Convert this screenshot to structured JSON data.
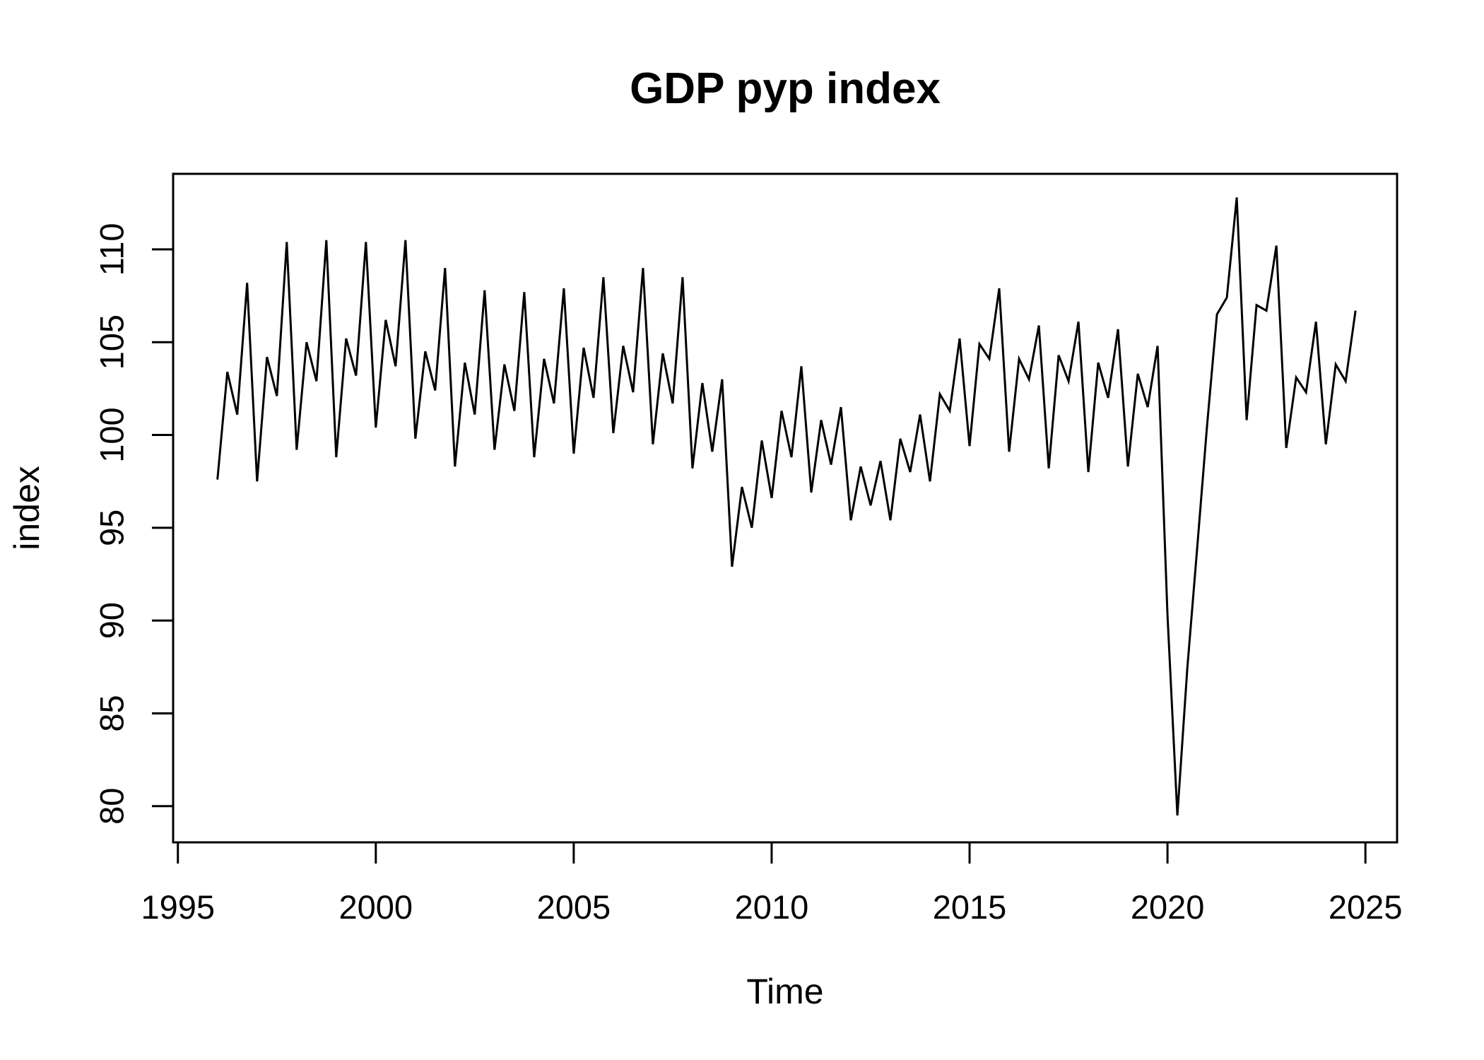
{
  "page": {
    "background": "#ffffff",
    "foreground": "#000000"
  },
  "chart_data": {
    "type": "line",
    "title": "GDP pyp index",
    "xlabel": "Time",
    "ylabel": "index",
    "grid": false,
    "legend": "none",
    "line_color": "#000000",
    "xlim": [
      1994.88,
      2025.8
    ],
    "ylim": [
      78.05,
      114.07
    ],
    "x_ticks": [
      1995,
      2000,
      2005,
      2010,
      2015,
      2020,
      2025
    ],
    "y_ticks": [
      80,
      85,
      90,
      95,
      100,
      105,
      110
    ],
    "series": [
      {
        "name": "GDP pyp index",
        "color": "#000000",
        "start_year": 1996,
        "frequency": 4,
        "values": [
          97.6,
          103.4,
          101.1,
          108.2,
          97.5,
          104.2,
          102.1,
          110.4,
          99.2,
          105.0,
          102.9,
          110.5,
          98.8,
          105.2,
          103.2,
          110.4,
          100.4,
          106.2,
          103.7,
          110.5,
          99.8,
          104.5,
          102.4,
          109.0,
          98.3,
          103.9,
          101.1,
          107.8,
          99.2,
          103.8,
          101.3,
          107.7,
          98.8,
          104.1,
          101.7,
          107.9,
          99.0,
          104.7,
          102.0,
          108.5,
          100.1,
          104.8,
          102.3,
          109.0,
          99.5,
          104.4,
          101.7,
          108.5,
          98.2,
          102.8,
          99.1,
          103.0,
          92.9,
          97.2,
          95.0,
          99.7,
          96.6,
          101.3,
          98.8,
          103.7,
          96.9,
          100.8,
          98.4,
          101.5,
          95.4,
          98.3,
          96.2,
          98.6,
          95.4,
          99.8,
          98.0,
          101.1,
          97.5,
          102.2,
          101.3,
          105.2,
          99.4,
          104.9,
          104.1,
          107.9,
          99.1,
          104.1,
          103.0,
          105.9,
          98.2,
          104.3,
          102.9,
          106.1,
          98.0,
          103.9,
          102.0,
          105.7,
          98.3,
          103.3,
          101.5,
          104.8,
          90.3,
          79.5,
          87.4,
          93.9,
          100.5,
          106.5,
          107.4,
          112.8,
          100.8,
          107.0,
          106.7,
          110.2,
          99.3,
          103.1,
          102.3,
          106.1,
          99.5,
          103.8,
          102.9,
          106.7
        ]
      }
    ]
  }
}
